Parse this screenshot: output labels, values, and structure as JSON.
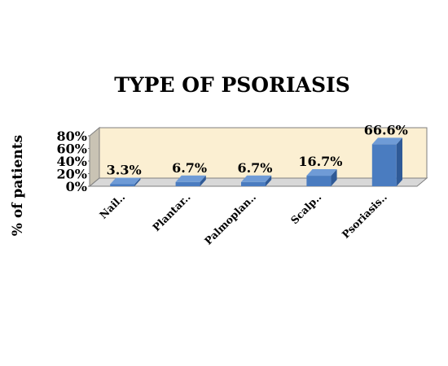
{
  "chart_data": {
    "type": "bar",
    "title": "TYPE OF PSORIASIS",
    "xlabel": "",
    "ylabel": "% of patients",
    "categories": [
      "Nail..",
      "Plantar..",
      "Palmoplan..",
      "Scalp..",
      "Psoriasis.."
    ],
    "values": [
      3.3,
      6.7,
      6.7,
      16.7,
      66.6
    ],
    "value_labels": [
      "3.3%",
      "6.7%",
      "6.7%",
      "16.7%",
      "66.6%"
    ],
    "ylim": [
      0,
      80
    ],
    "yticks": [
      "0%",
      "20%",
      "40%",
      "60%",
      "80%"
    ],
    "grid": false,
    "legend": "none",
    "style": "3d",
    "colors": {
      "bar_front": "#4a7cc0",
      "bar_top": "#6f9bd6",
      "bar_side": "#2f5a97",
      "back_wall": "#fbefd2",
      "side_wall": "#c9c3b4",
      "floor": "#d8d8d8",
      "outline": "#7f7f7f"
    }
  }
}
